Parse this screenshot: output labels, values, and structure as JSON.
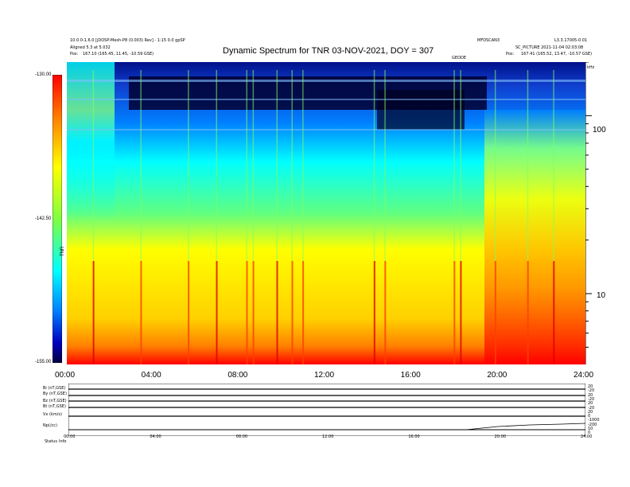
{
  "header": {
    "title": "Dynamic Spectrum for TNR 03-NOV-2021, DOY = 307",
    "left_line1": "10.0.0-1.6.0 [jDOSP-Mesh-P8 (0.003) Rev] - 1:15 0.0 gpSP",
    "left_line2": "Aligned 5.3 at 5.032",
    "left_line3_prefix": "Pos:",
    "left_line3": "167.10 (165.45, 11.45, -10.59 GSE)",
    "right_line1": "MFDSCAN3",
    "right_line1b": "L3.3.17005-0.01",
    "right_line2": "SC_PICTURE 2021-11-04 02:03:08",
    "right_line3_prefix": "Pos:",
    "right_line3": "167.41 (165.52, 13.47, -10.57 GSE)",
    "center_small": "GEODE",
    "corner_small": "kHz"
  },
  "colorbar": {
    "label": "TNR",
    "ticks": [
      "-130.00",
      "-142.50",
      "-155.00"
    ],
    "colors": [
      "#ff0000",
      "#ff8000",
      "#ffff00",
      "#80ff40",
      "#00ffff",
      "#0080ff",
      "#0000c0",
      "#000040"
    ]
  },
  "panels": {
    "left_labels": [
      "Bi (nT,GSE)",
      "By (nT,GSE)",
      "Bz (nT,GSE)",
      "Bt (nT,GSE)",
      "Vx (km/s)",
      "Np(/cc)"
    ],
    "right_labels": [
      "20",
      "-20",
      "20",
      "-20",
      "20",
      "-20",
      "20",
      "0",
      "-1000",
      "-200",
      "10",
      "0"
    ],
    "bottom_label": "Status",
    "bottom_label2": "Info"
  },
  "chart_data": {
    "type": "heatmap",
    "title": "Dynamic Spectrum for TNR 03-NOV-2021, DOY = 307",
    "xlabel": "",
    "ylabel": "",
    "x_ticks": [
      "00:00",
      "04:00",
      "08:00",
      "12:00",
      "16:00",
      "20:00",
      "24:00"
    ],
    "x_range_hours": [
      0,
      24
    ],
    "y_ticks": [
      "10",
      "100"
    ],
    "y_scale": "log",
    "y_range_khz": [
      4,
      200
    ],
    "colorbar_range": [
      -155.0,
      -130.0
    ],
    "small_x_ticks": [
      "00:00",
      "04:00",
      "08:00",
      "12:00",
      "16:00",
      "20:00",
      "24:00"
    ],
    "vertical_bursts_hours": [
      1.2,
      3.4,
      5.6,
      6.9,
      8.3,
      8.6,
      9.7,
      10.4,
      10.9,
      14.2,
      14.7,
      17.9,
      18.2,
      19.8,
      21.3,
      22.5
    ]
  }
}
